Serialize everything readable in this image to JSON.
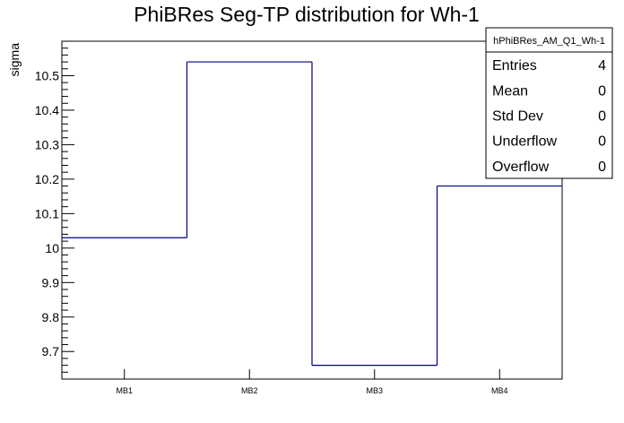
{
  "chart_data": {
    "type": "bar",
    "style": "step",
    "title": "PhiBRes Seg-TP distribution for Wh-1",
    "xlabel": "",
    "ylabel": "sigma",
    "categories": [
      "MB1",
      "MB2",
      "MB3",
      "MB4"
    ],
    "values": [
      10.03,
      10.54,
      9.66,
      10.18
    ],
    "ylim": [
      9.62,
      10.6
    ],
    "yticks": [
      "9.7",
      "9.8",
      "9.9",
      "10",
      "10.1",
      "10.2",
      "10.3",
      "10.4",
      "10.5"
    ],
    "line_color": "#000080",
    "stats_box": {
      "name": "hPhiBRes_AM_Q1_Wh-1",
      "rows": [
        {
          "label": "Entries",
          "value": "4"
        },
        {
          "label": "Mean",
          "value": "0"
        },
        {
          "label": "Std Dev",
          "value": "0"
        },
        {
          "label": "Underflow",
          "value": "0"
        },
        {
          "label": "Overflow",
          "value": "0"
        }
      ]
    }
  }
}
